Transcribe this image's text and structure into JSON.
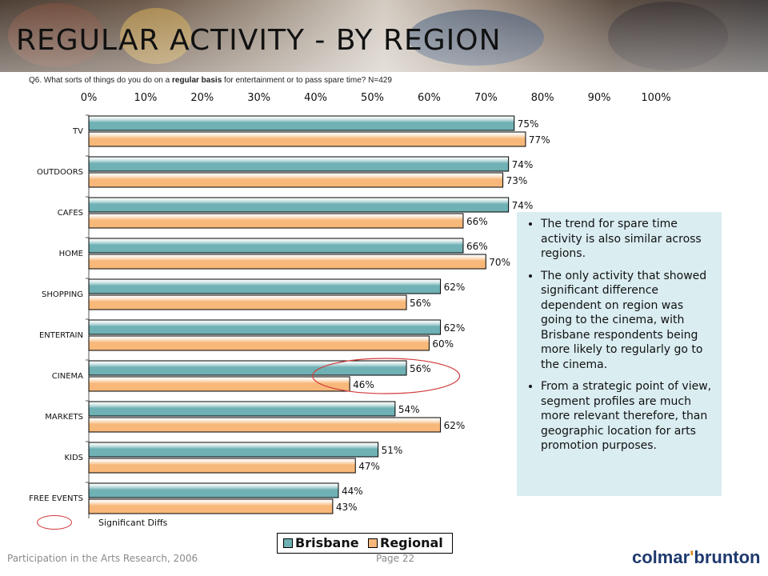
{
  "page": {
    "title": "REGULAR ACTIVITY - BY REGION",
    "question_prefix": "Q6. What sorts of things do you do on a ",
    "question_bold": "regular basis",
    "question_suffix": " for entertainment or to pass spare time? N=429",
    "footer_left": "Participation in the Arts Research, 2006",
    "footer_page": "Page 22",
    "logo_left": "colmar",
    "logo_right": "brunton",
    "significant_label": "Significant Diffs"
  },
  "notes": [
    "The trend for spare time activity is also similar across regions.",
    "The only activity that showed significant difference dependent on region was going to the cinema, with Brisbane respondents being more likely to regularly go to the cinema.",
    "From a strategic point of view, segment profiles are much more relevant therefore, than geographic location for arts promotion purposes."
  ],
  "colors": {
    "brisbane": "#6fb1b4",
    "regional": "#f7b87a",
    "note_bg": "#daedf1",
    "highlight": "#d23a3a"
  },
  "chart_data": {
    "type": "bar",
    "orientation": "horizontal",
    "categories": [
      "TV",
      "OUTDOORS",
      "CAFES",
      "HOME",
      "SHOPPING",
      "ENTERTAIN",
      "CINEMA",
      "MARKETS",
      "KIDS",
      "FREE EVENTS"
    ],
    "series": [
      {
        "name": "Brisbane",
        "values": [
          75,
          74,
          74,
          66,
          62,
          62,
          56,
          54,
          51,
          44
        ]
      },
      {
        "name": "Regional",
        "values": [
          77,
          73,
          66,
          70,
          56,
          60,
          46,
          62,
          47,
          43
        ]
      }
    ],
    "xlim": [
      0,
      100
    ],
    "xticks": [
      "0%",
      "10%",
      "20%",
      "30%",
      "40%",
      "50%",
      "60%",
      "70%",
      "80%",
      "90%",
      "100%"
    ],
    "value_suffix": "%",
    "highlighted_category": "CINEMA",
    "legend_position": "bottom",
    "grid": false
  }
}
